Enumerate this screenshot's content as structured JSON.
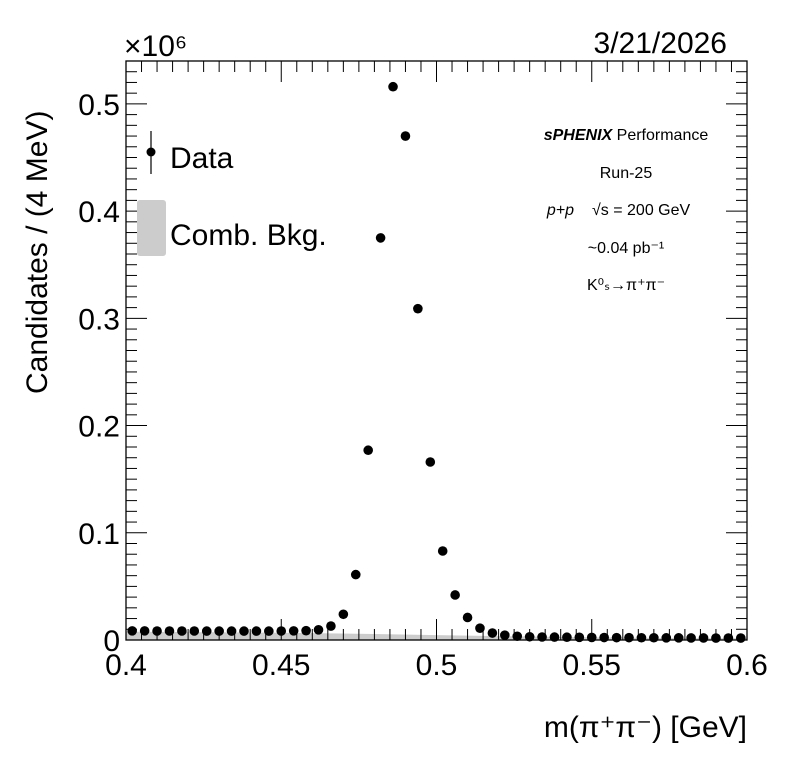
{
  "chart_data": {
    "type": "scatter",
    "title": "",
    "xlabel": "m(π⁺π⁻) [GeV]",
    "ylabel": "Candidates / (4 MeV)",
    "y_multiplier": "×10⁶",
    "date": "3/21/2026",
    "xlim": [
      0.4,
      0.6
    ],
    "ylim": [
      0,
      0.54
    ],
    "x_ticks": [
      0.4,
      0.45,
      0.5,
      0.55,
      0.6
    ],
    "x_tick_labels": [
      "0.4",
      "0.45",
      "0.5",
      "0.55",
      "0.6"
    ],
    "y_ticks": [
      0,
      0.1,
      0.2,
      0.3,
      0.4,
      0.5
    ],
    "y_tick_labels": [
      "0",
      "0.1",
      "0.2",
      "0.3",
      "0.4",
      "0.5"
    ],
    "legend": {
      "placement": "top-left",
      "entries": [
        "Data",
        "Comb. Bkg."
      ]
    },
    "annotations": {
      "experiment_bold": "sPHENIX",
      "experiment_rest": " Performance",
      "run": "Run-25",
      "collision": "p+p",
      "energy": "√s = 200 GeV",
      "luminosity": "~0.04 pb⁻¹",
      "decay": "K⁰ₛ→π⁺π⁻"
    },
    "series": [
      {
        "name": "Data",
        "marker": "circle",
        "color": "#000000",
        "x": [
          0.402,
          0.406,
          0.41,
          0.414,
          0.418,
          0.422,
          0.426,
          0.43,
          0.434,
          0.438,
          0.442,
          0.446,
          0.45,
          0.454,
          0.458,
          0.462,
          0.466,
          0.47,
          0.474,
          0.478,
          0.482,
          0.486,
          0.49,
          0.494,
          0.498,
          0.502,
          0.506,
          0.51,
          0.514,
          0.518,
          0.522,
          0.526,
          0.53,
          0.534,
          0.538,
          0.542,
          0.546,
          0.55,
          0.554,
          0.558,
          0.562,
          0.566,
          0.57,
          0.574,
          0.578,
          0.582,
          0.586,
          0.59,
          0.594,
          0.598
        ],
        "y": [
          0.0085,
          0.0085,
          0.0084,
          0.0084,
          0.0084,
          0.0084,
          0.0083,
          0.0083,
          0.0083,
          0.0083,
          0.0083,
          0.0083,
          0.0084,
          0.0085,
          0.0087,
          0.0095,
          0.013,
          0.024,
          0.061,
          0.177,
          0.375,
          0.516,
          0.47,
          0.309,
          0.166,
          0.083,
          0.042,
          0.021,
          0.011,
          0.0065,
          0.0045,
          0.0035,
          0.003,
          0.0028,
          0.0027,
          0.0026,
          0.0025,
          0.0024,
          0.0023,
          0.0022,
          0.0022,
          0.0021,
          0.0021,
          0.002,
          0.002,
          0.0019,
          0.0019,
          0.0018,
          0.0018,
          0.0018
        ]
      },
      {
        "name": "Comb. Bkg.",
        "type": "area",
        "color": "#cccccc",
        "x": [
          0.4,
          0.42,
          0.44,
          0.46,
          0.48,
          0.5,
          0.52,
          0.54,
          0.56,
          0.58,
          0.6
        ],
        "y": [
          0.0078,
          0.0074,
          0.007,
          0.0064,
          0.0056,
          0.0046,
          0.0036,
          0.0028,
          0.0022,
          0.0018,
          0.0016
        ]
      }
    ]
  }
}
